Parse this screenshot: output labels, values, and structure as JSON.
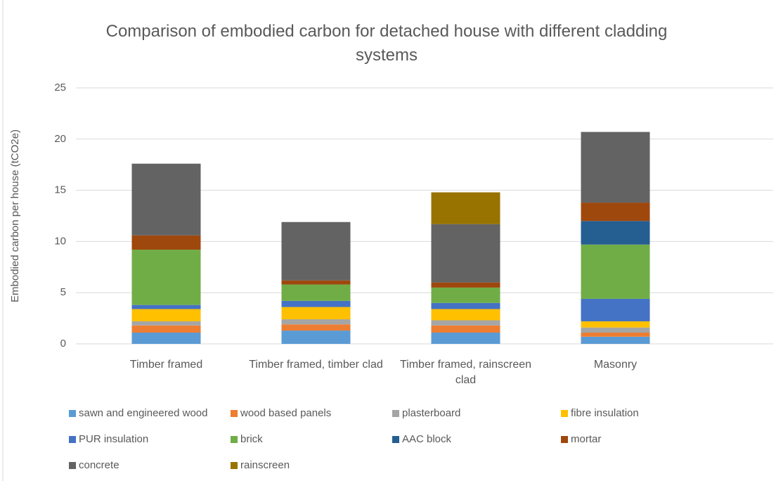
{
  "chart_data": {
    "type": "stacked-bar",
    "title": "Comparison of embodied carbon for detached house with different cladding systems",
    "y_label": "Embodied carbon per house (tCO2e)",
    "categories": [
      "Timber framed",
      "Timber framed, timber clad",
      "Timber framed, rainscreen clad",
      "Masonry"
    ],
    "series": [
      {
        "name": "sawn and engineered wood",
        "color": "#5b9bd5",
        "values": [
          1.1,
          1.3,
          1.1,
          0.7
        ]
      },
      {
        "name": "wood based panels",
        "color": "#ed7d31",
        "values": [
          0.7,
          0.6,
          0.7,
          0.4
        ]
      },
      {
        "name": "plasterboard",
        "color": "#a5a5a5",
        "values": [
          0.4,
          0.5,
          0.5,
          0.5
        ]
      },
      {
        "name": "fibre insulation",
        "color": "#ffc000",
        "values": [
          1.2,
          1.2,
          1.1,
          0.6
        ]
      },
      {
        "name": "PUR insulation",
        "color": "#4472c4",
        "values": [
          0.4,
          0.6,
          0.6,
          2.2
        ]
      },
      {
        "name": "brick",
        "color": "#70ad47",
        "values": [
          5.4,
          1.6,
          1.5,
          5.3
        ]
      },
      {
        "name": "AAC block",
        "color": "#255e91",
        "values": [
          0,
          0,
          0,
          2.3
        ]
      },
      {
        "name": "mortar",
        "color": "#9e480e",
        "values": [
          1.4,
          0.4,
          0.5,
          1.8
        ]
      },
      {
        "name": "concrete",
        "color": "#636363",
        "values": [
          7.0,
          5.7,
          5.7,
          6.9
        ]
      },
      {
        "name": "rainscreen",
        "color": "#997300",
        "values": [
          0,
          0,
          3.1,
          0
        ]
      }
    ],
    "ylim": [
      0,
      25
    ],
    "yticks": [
      0,
      5,
      10,
      15,
      20,
      25
    ],
    "grid": true
  }
}
